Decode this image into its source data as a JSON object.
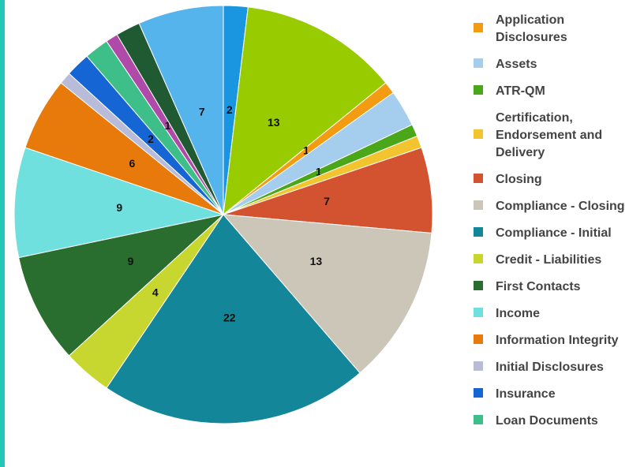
{
  "chart_data": {
    "type": "pie",
    "categories": [
      null,
      null,
      "Application Disclosures",
      "Assets",
      "ATR-QM",
      "Certification, Endorsement and Delivery",
      "Closing",
      "Compliance - Closing",
      "Compliance - Initial",
      "Credit - Liabilities",
      "First Contacts",
      "Income",
      "Information Integrity",
      "Initial Disclosures",
      "Insurance",
      "Loan Documents",
      null,
      null,
      null
    ],
    "values": [
      2,
      13,
      1,
      3,
      1,
      1,
      7,
      13,
      22,
      4,
      9,
      9,
      6,
      1,
      2,
      2,
      1,
      2,
      7
    ],
    "value_labels": [
      "2",
      "13",
      "1",
      null,
      "1",
      null,
      "7",
      "13",
      "22",
      "4",
      "9",
      "9",
      "6",
      null,
      "2",
      null,
      "1",
      null,
      "7"
    ],
    "colors": [
      "#1a96e0",
      "#99cc00",
      "#f39c12",
      "#a4cdee",
      "#4aa71a",
      "#f2c530",
      "#d35230",
      "#ccc6b8",
      "#138799",
      "#c8d630",
      "#2a6e2f",
      "#6fe0dd",
      "#e87a0c",
      "#b8bcd8",
      "#1565d4",
      "#3ebf8a",
      "#b04aa8",
      "#1f5a33",
      "#56b4ec"
    ],
    "legend": "right"
  }
}
